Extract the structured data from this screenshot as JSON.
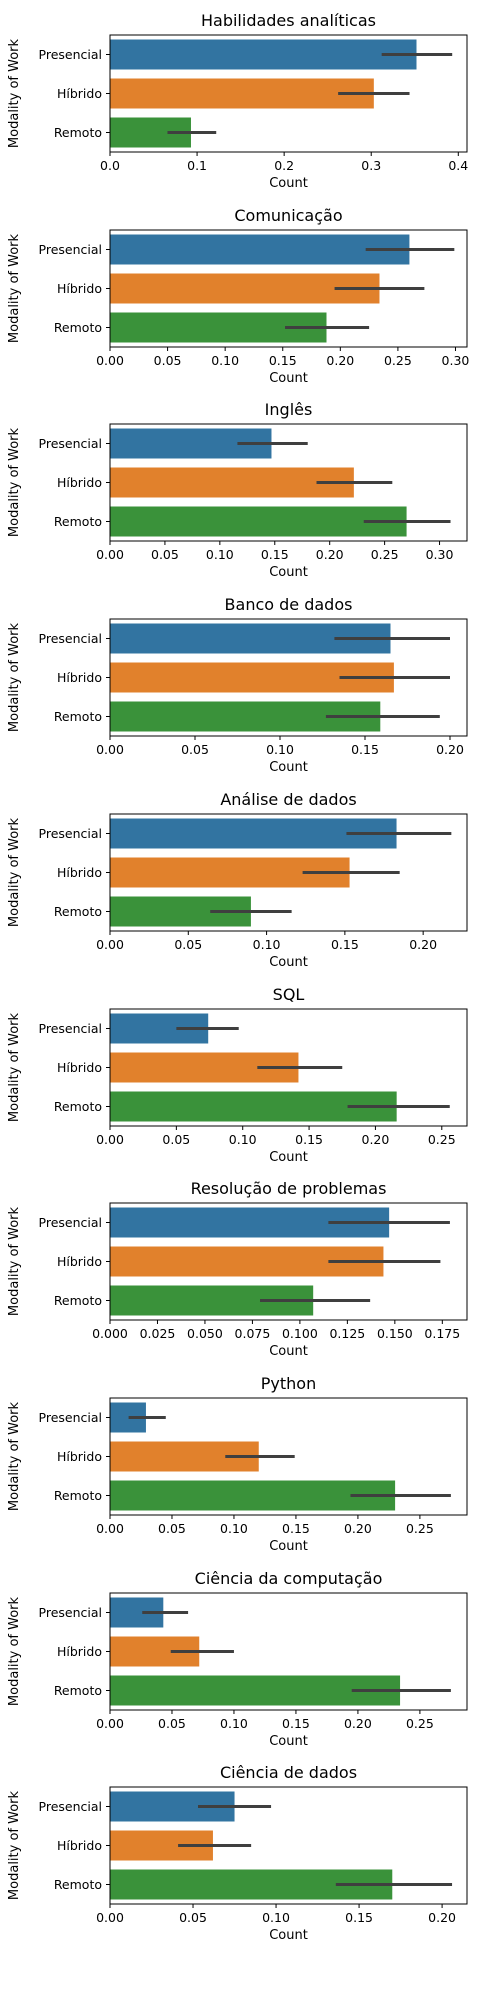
{
  "colors": {
    "Presencial": "#3274a1",
    "Híbrido": "#e1812c",
    "Remoto": "#3a923a",
    "error_bar": "#3f3f3f"
  },
  "chart_data": [
    {
      "type": "bar",
      "orientation": "horizontal",
      "title": "Habilidades analíticas",
      "xlabel": "Count",
      "ylabel": "Modality of Work",
      "categories": [
        "Presencial",
        "Híbrido",
        "Remoto"
      ],
      "values": [
        0.352,
        0.303,
        0.093
      ],
      "ci_low": [
        0.312,
        0.262,
        0.066
      ],
      "ci_high": [
        0.393,
        0.344,
        0.122
      ],
      "xlim": [
        0,
        0.41
      ],
      "xticks": [
        0,
        0.1,
        0.2,
        0.3,
        0.4
      ],
      "xtick_labels": [
        "0.0",
        "0.1",
        "0.2",
        "0.3",
        "0.4"
      ]
    },
    {
      "type": "bar",
      "orientation": "horizontal",
      "title": "Comunicação",
      "xlabel": "Count",
      "ylabel": "Modality of Work",
      "categories": [
        "Presencial",
        "Híbrido",
        "Remoto"
      ],
      "values": [
        0.26,
        0.234,
        0.188
      ],
      "ci_low": [
        0.222,
        0.195,
        0.152
      ],
      "ci_high": [
        0.299,
        0.273,
        0.225
      ],
      "xlim": [
        0,
        0.31
      ],
      "xticks": [
        0,
        0.05,
        0.1,
        0.15,
        0.2,
        0.25,
        0.3
      ],
      "xtick_labels": [
        "0.00",
        "0.05",
        "0.10",
        "0.15",
        "0.20",
        "0.25",
        "0.30"
      ]
    },
    {
      "type": "bar",
      "orientation": "horizontal",
      "title": "Inglês",
      "xlabel": "Count",
      "ylabel": "Modality of Work",
      "categories": [
        "Presencial",
        "Híbrido",
        "Remoto"
      ],
      "values": [
        0.147,
        0.222,
        0.27
      ],
      "ci_low": [
        0.116,
        0.188,
        0.231
      ],
      "ci_high": [
        0.18,
        0.257,
        0.31
      ],
      "xlim": [
        0,
        0.325
      ],
      "xticks": [
        0,
        0.05,
        0.1,
        0.15,
        0.2,
        0.25,
        0.3
      ],
      "xtick_labels": [
        "0.00",
        "0.05",
        "0.10",
        "0.15",
        "0.20",
        "0.25",
        "0.30"
      ]
    },
    {
      "type": "bar",
      "orientation": "horizontal",
      "title": "Banco de dados",
      "xlabel": "Count",
      "ylabel": "Modality of Work",
      "categories": [
        "Presencial",
        "Híbrido",
        "Remoto"
      ],
      "values": [
        0.165,
        0.167,
        0.159
      ],
      "ci_low": [
        0.132,
        0.135,
        0.127
      ],
      "ci_high": [
        0.2,
        0.2,
        0.194
      ],
      "xlim": [
        0,
        0.21
      ],
      "xticks": [
        0,
        0.05,
        0.1,
        0.15,
        0.2
      ],
      "xtick_labels": [
        "0.00",
        "0.05",
        "0.10",
        "0.15",
        "0.20"
      ]
    },
    {
      "type": "bar",
      "orientation": "horizontal",
      "title": "Análise de dados",
      "xlabel": "Count",
      "ylabel": "Modality of Work",
      "categories": [
        "Presencial",
        "Híbrido",
        "Remoto"
      ],
      "values": [
        0.183,
        0.153,
        0.09
      ],
      "ci_low": [
        0.151,
        0.123,
        0.064
      ],
      "ci_high": [
        0.218,
        0.185,
        0.116
      ],
      "xlim": [
        0,
        0.228
      ],
      "xticks": [
        0,
        0.05,
        0.1,
        0.15,
        0.2
      ],
      "xtick_labels": [
        "0.00",
        "0.05",
        "0.10",
        "0.15",
        "0.20"
      ]
    },
    {
      "type": "bar",
      "orientation": "horizontal",
      "title": "SQL",
      "xlabel": "Count",
      "ylabel": "Modality of Work",
      "categories": [
        "Presencial",
        "Híbrido",
        "Remoto"
      ],
      "values": [
        0.074,
        0.142,
        0.216
      ],
      "ci_low": [
        0.05,
        0.111,
        0.179
      ],
      "ci_high": [
        0.097,
        0.175,
        0.256
      ],
      "xlim": [
        0,
        0.269
      ],
      "xticks": [
        0,
        0.05,
        0.1,
        0.15,
        0.2,
        0.25
      ],
      "xtick_labels": [
        "0.00",
        "0.05",
        "0.10",
        "0.15",
        "0.20",
        "0.25"
      ]
    },
    {
      "type": "bar",
      "orientation": "horizontal",
      "title": "Resolução de problemas",
      "xlabel": "Count",
      "ylabel": "Modality of Work",
      "categories": [
        "Presencial",
        "Híbrido",
        "Remoto"
      ],
      "values": [
        0.147,
        0.144,
        0.107
      ],
      "ci_low": [
        0.115,
        0.115,
        0.079
      ],
      "ci_high": [
        0.179,
        0.174,
        0.137
      ],
      "xlim": [
        0,
        0.188
      ],
      "xticks": [
        0,
        0.025,
        0.05,
        0.075,
        0.1,
        0.125,
        0.15,
        0.175
      ],
      "xtick_labels": [
        "0.000",
        "0.025",
        "0.050",
        "0.075",
        "0.100",
        "0.125",
        "0.150",
        "0.175"
      ]
    },
    {
      "type": "bar",
      "orientation": "horizontal",
      "title": "Python",
      "xlabel": "Count",
      "ylabel": "Modality of Work",
      "categories": [
        "Presencial",
        "Híbrido",
        "Remoto"
      ],
      "values": [
        0.029,
        0.12,
        0.23
      ],
      "ci_low": [
        0.015,
        0.093,
        0.194
      ],
      "ci_high": [
        0.045,
        0.149,
        0.275
      ],
      "xlim": [
        0,
        0.288
      ],
      "xticks": [
        0,
        0.05,
        0.1,
        0.15,
        0.2,
        0.25
      ],
      "xtick_labels": [
        "0.00",
        "0.05",
        "0.10",
        "0.15",
        "0.20",
        "0.25"
      ]
    },
    {
      "type": "bar",
      "orientation": "horizontal",
      "title": "Ciência da computação",
      "xlabel": "Count",
      "ylabel": "Modality of Work",
      "categories": [
        "Presencial",
        "Híbrido",
        "Remoto"
      ],
      "values": [
        0.043,
        0.072,
        0.234
      ],
      "ci_low": [
        0.026,
        0.049,
        0.195
      ],
      "ci_high": [
        0.063,
        0.1,
        0.275
      ],
      "xlim": [
        0,
        0.288
      ],
      "xticks": [
        0,
        0.05,
        0.1,
        0.15,
        0.2,
        0.25
      ],
      "xtick_labels": [
        "0.00",
        "0.05",
        "0.10",
        "0.15",
        "0.20",
        "0.25"
      ]
    },
    {
      "type": "bar",
      "orientation": "horizontal",
      "title": "Ciência de dados",
      "xlabel": "Count",
      "ylabel": "Modality of Work",
      "categories": [
        "Presencial",
        "Híbrido",
        "Remoto"
      ],
      "values": [
        0.075,
        0.062,
        0.17
      ],
      "ci_low": [
        0.053,
        0.041,
        0.136
      ],
      "ci_high": [
        0.097,
        0.085,
        0.206
      ],
      "xlim": [
        0,
        0.215
      ],
      "xticks": [
        0,
        0.05,
        0.1,
        0.15,
        0.2
      ],
      "xtick_labels": [
        "0.00",
        "0.05",
        "0.10",
        "0.15",
        "0.20"
      ]
    }
  ]
}
